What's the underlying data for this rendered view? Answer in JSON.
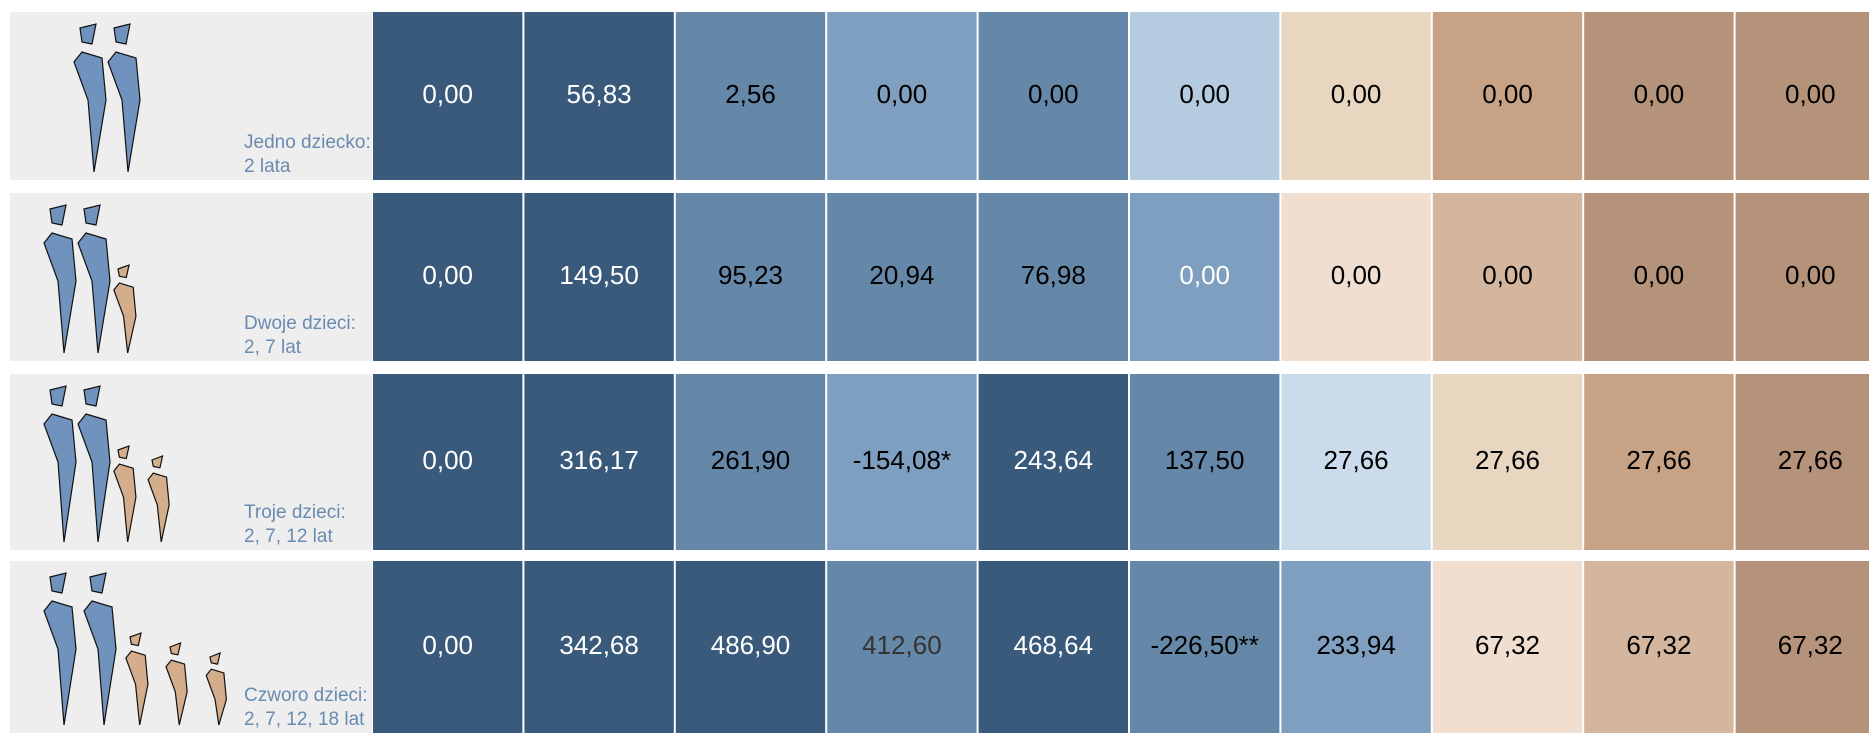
{
  "table": {
    "rows": [
      {
        "label": [
          "Jedno dziecko:",
          "2 lata"
        ],
        "cells": [
          "0,00",
          "56,83",
          "2,56",
          "0,00",
          "0,00",
          "0,00",
          "0,00",
          "0,00",
          "0,00",
          "0,00"
        ],
        "colors": [
          "#3a5a7c",
          "#3a5a7c",
          "#6688a8",
          "#7e9fbf",
          "#6688a8",
          "#b5cbe0",
          "#e8d6c1",
          "#c7a285",
          "#b4937a",
          "#b4937a"
        ],
        "text_colors": [
          "#ffffff",
          "#ffffff",
          "#000000",
          "#000000",
          "#000000",
          "#000000",
          "#000000",
          "#000000",
          "#000000",
          "#000000"
        ]
      },
      {
        "label": [
          "Dwoje dzieci:",
          "2, 7 lat"
        ],
        "cells": [
          "0,00",
          "149,50",
          "95,23",
          "20,94",
          "76,98",
          "0,00",
          "0,00",
          "0,00",
          "0,00",
          "0,00"
        ],
        "colors": [
          "#3a5a7c",
          "#3a5a7c",
          "#6688a8",
          "#6688a8",
          "#6688a8",
          "#7e9fbf",
          "#f0dfd1",
          "#d4b69e",
          "#b4937a",
          "#b4937a"
        ],
        "text_colors": [
          "#ffffff",
          "#ffffff",
          "#000000",
          "#000000",
          "#000000",
          "#ffffff",
          "#000000",
          "#000000",
          "#000000",
          "#000000"
        ]
      },
      {
        "label": [
          "Troje dzieci:",
          "2, 7, 12 lat"
        ],
        "cells": [
          "0,00",
          "316,17",
          "261,90",
          "-154,08*",
          "243,64",
          "137,50",
          "27,66",
          "27,66",
          "27,66",
          "27,66"
        ],
        "colors": [
          "#3a5a7c",
          "#3a5a7c",
          "#6688a8",
          "#7e9fbf",
          "#3a5a7c",
          "#6688a8",
          "#cadcec",
          "#e8d6c1",
          "#c7a285",
          "#b4937a"
        ],
        "text_colors": [
          "#ffffff",
          "#ffffff",
          "#000000",
          "#000000",
          "#ffffff",
          "#000000",
          "#000000",
          "#000000",
          "#000000",
          "#000000"
        ]
      },
      {
        "label": [
          "Czworo dzieci:",
          "2, 7, 12, 18 lat"
        ],
        "cells": [
          "0,00",
          "342,68",
          "486,90",
          "412,60",
          "468,64",
          "-226,50**",
          "233,94",
          "67,32",
          "67,32",
          "67,32"
        ],
        "colors": [
          "#3a5a7c",
          "#3a5a7c",
          "#3a5a7c",
          "#6688a8",
          "#3a5a7c",
          "#6688a8",
          "#7e9fbf",
          "#f0dfd1",
          "#d4b69e",
          "#b4937a"
        ],
        "text_colors": [
          "#ffffff",
          "#ffffff",
          "#ffffff",
          "#333333",
          "#ffffff",
          "#000000",
          "#000000",
          "#000000",
          "#000000",
          "#000000"
        ]
      }
    ]
  }
}
